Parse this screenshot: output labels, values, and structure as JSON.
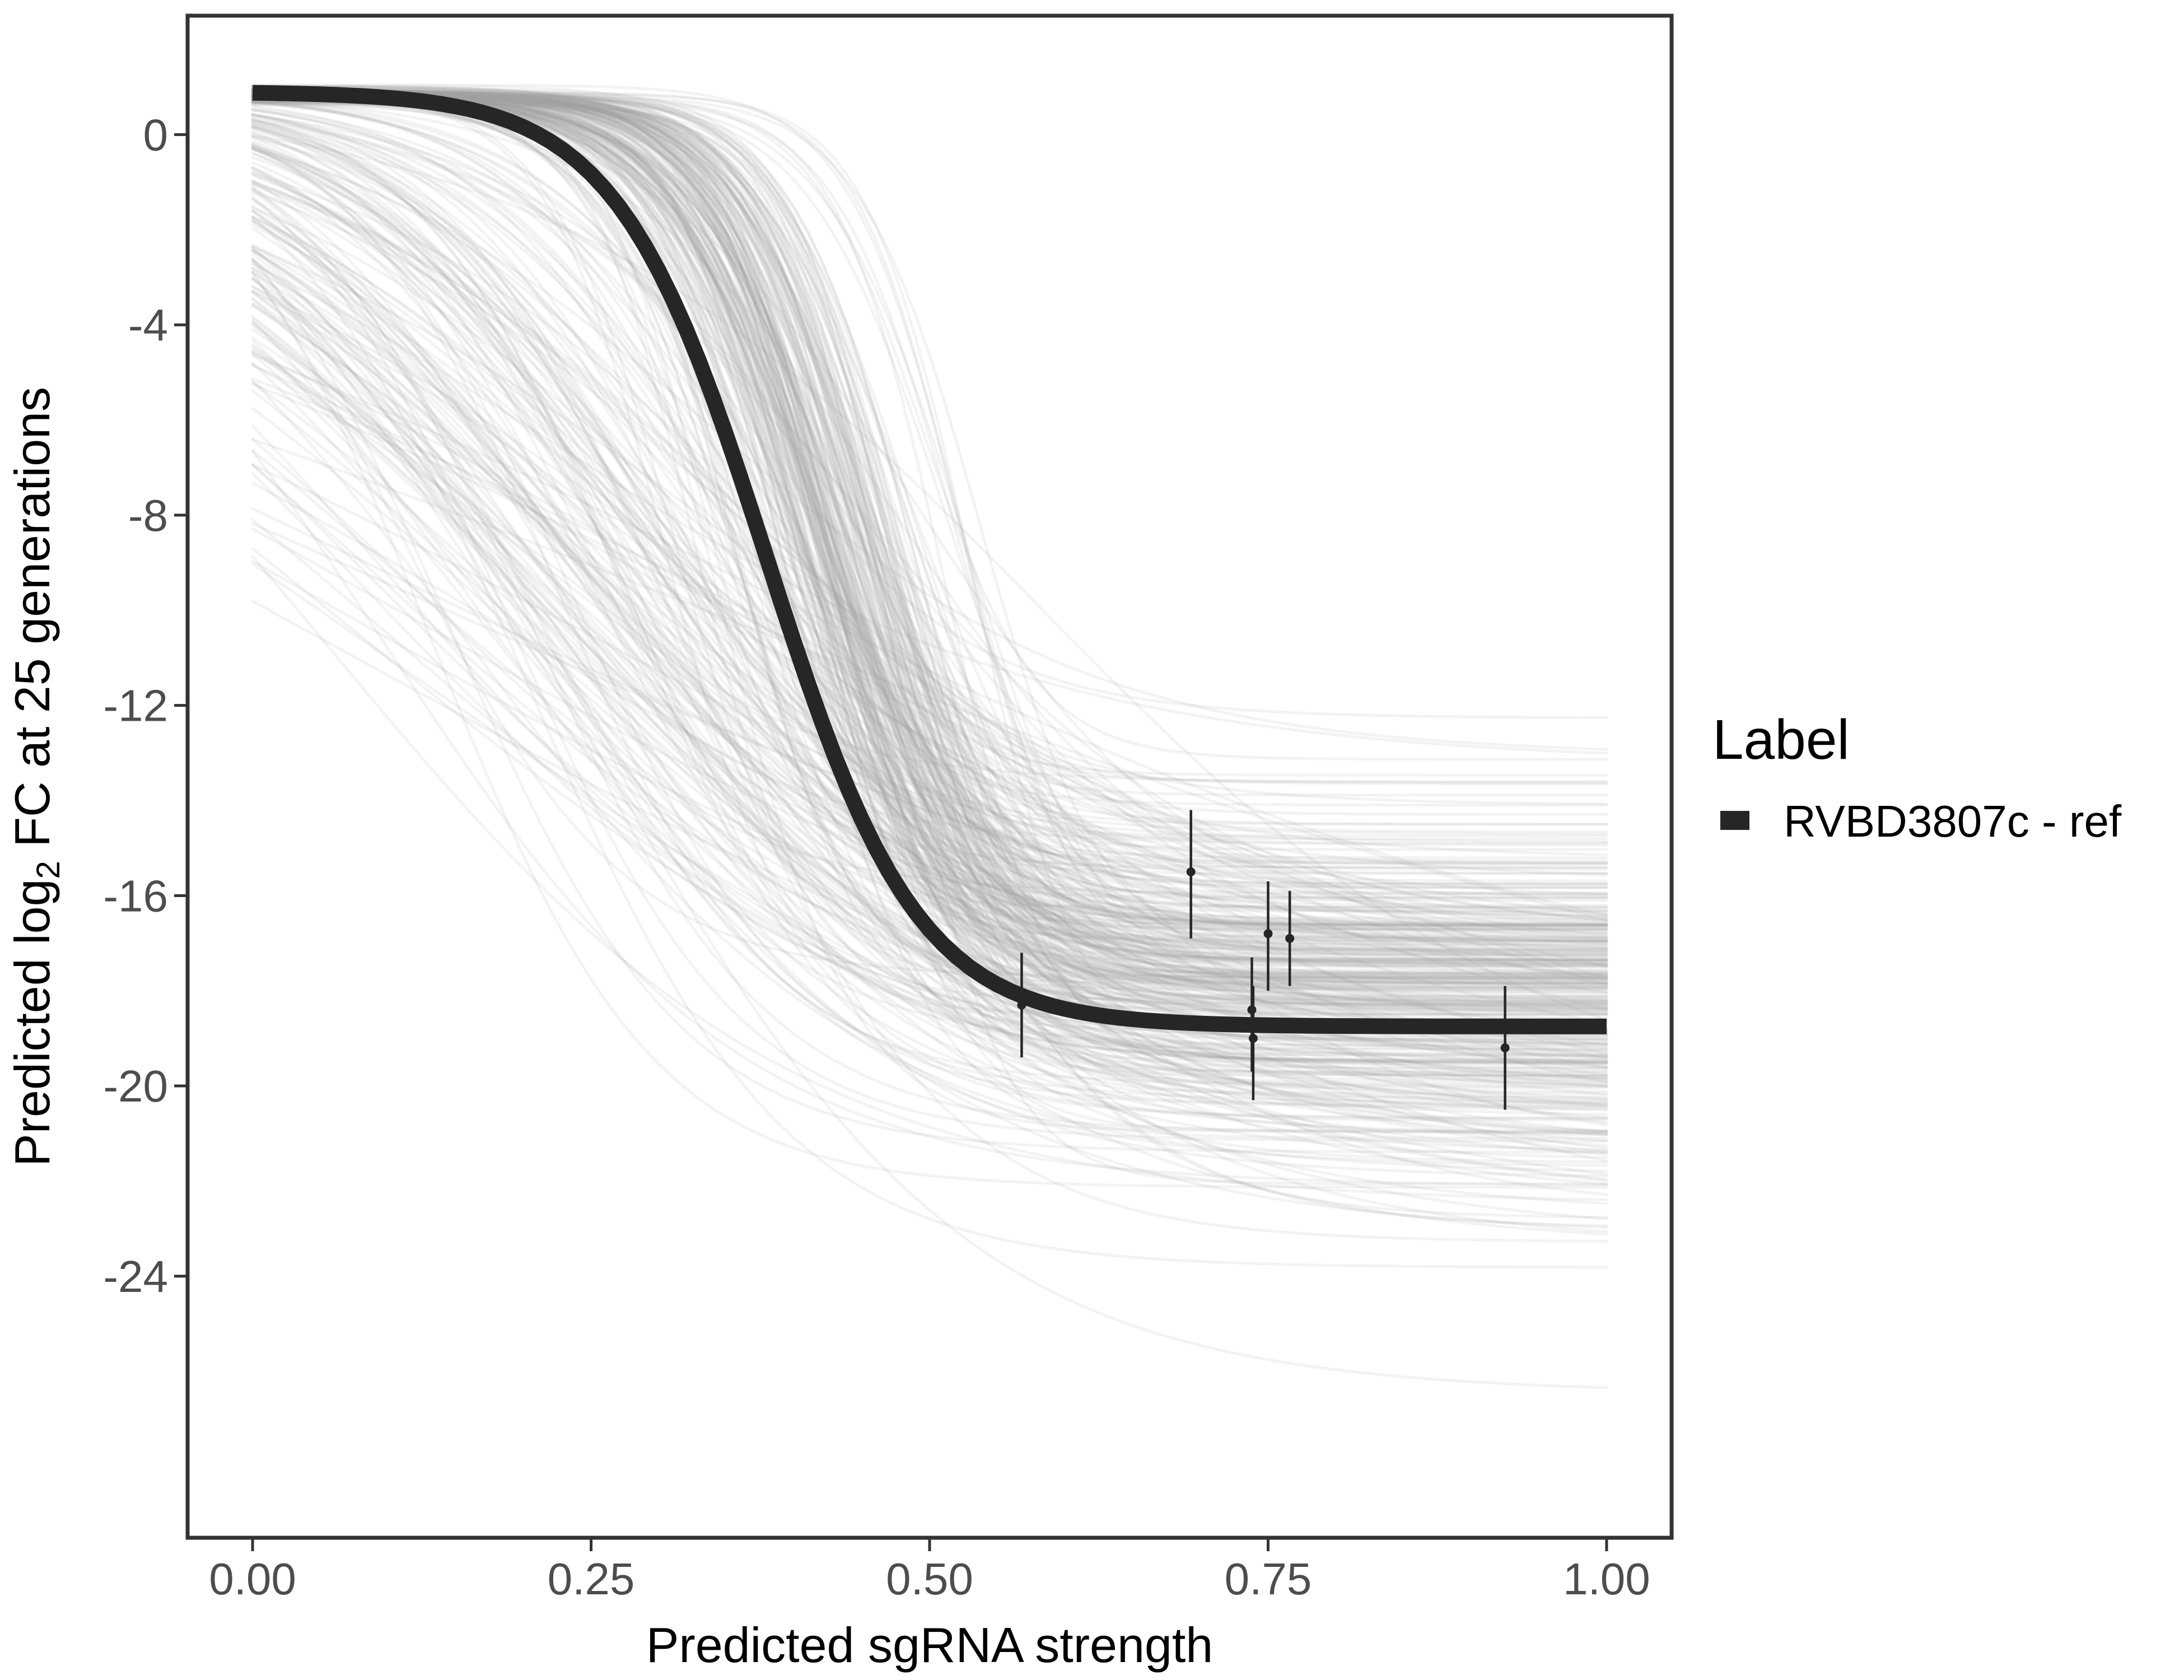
{
  "chart_data": {
    "type": "line",
    "title": "",
    "xlabel": "Predicted sgRNA strength",
    "ylabel": {
      "prefix": "Predicted ",
      "log_prefix": "log",
      "subscript": "2",
      "suffix": " FC at 25 generations"
    },
    "xlim": [
      -0.048,
      1.048
    ],
    "ylim": [
      -29.5,
      2.5
    ],
    "x_ticks": [
      0.0,
      0.25,
      0.5,
      0.75,
      1.0
    ],
    "x_tick_labels": [
      "0.00",
      "0.25",
      "0.50",
      "0.75",
      "1.00"
    ],
    "y_ticks": [
      0,
      -4,
      -8,
      -12,
      -16,
      -20,
      -24
    ],
    "y_tick_labels": [
      "0",
      "-4",
      "-8",
      "-12",
      "-16",
      "-20",
      "-24"
    ],
    "grid": false,
    "legend": {
      "title": "Label",
      "position": "right",
      "entries": [
        {
          "label": "RVBD3807c - ref",
          "color": "#262626"
        }
      ]
    },
    "main_curve": {
      "name": "RVBD3807c - ref",
      "color": "#262626",
      "model": "logistic",
      "upper": 0.9,
      "lower": -18.75,
      "midpoint": 0.38,
      "slope": 18
    },
    "posterior_draws": {
      "color": "#a6a6a6",
      "count": 400,
      "description": "posterior draws of the logistic dose-response curve"
    },
    "points": [
      {
        "x": 0.568,
        "y": -18.3,
        "ymin": -19.4,
        "ymax": -17.2
      },
      {
        "x": 0.693,
        "y": -15.5,
        "ymin": -16.9,
        "ymax": -14.2
      },
      {
        "x": 0.738,
        "y": -18.4,
        "ymin": -19.7,
        "ymax": -17.3
      },
      {
        "x": 0.739,
        "y": -19.0,
        "ymin": -20.3,
        "ymax": -17.9
      },
      {
        "x": 0.75,
        "y": -16.8,
        "ymin": -18.0,
        "ymax": -15.7
      },
      {
        "x": 0.766,
        "y": -16.9,
        "ymin": -17.9,
        "ymax": -15.9
      },
      {
        "x": 0.925,
        "y": -19.2,
        "ymin": -20.5,
        "ymax": -17.9
      }
    ],
    "colors": {
      "axis_frame": "#333333",
      "tick_text": "#4d4d4d",
      "point": "#262626"
    }
  }
}
